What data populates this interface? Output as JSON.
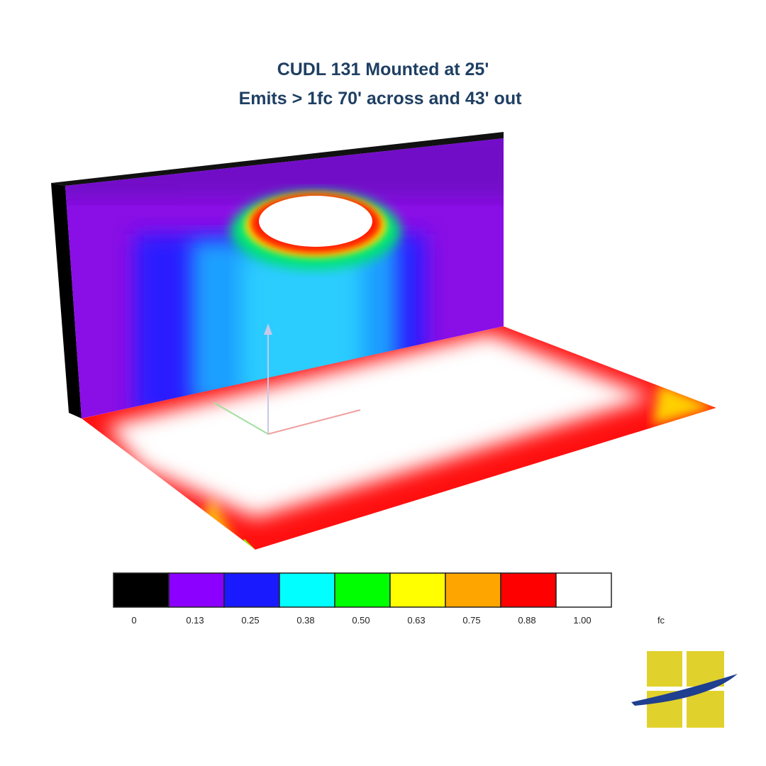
{
  "title": {
    "lines": [
      "CUDL 131 Mounted at 25'",
      "Emits > 1fc 70' across and 43' out"
    ]
  },
  "legend": {
    "items": [
      {
        "label": "0",
        "color": "#000000"
      },
      {
        "label": "0.13",
        "color": "#8b00ff"
      },
      {
        "label": "0.25",
        "color": "#1a1aff"
      },
      {
        "label": "0.38",
        "color": "#00ffff"
      },
      {
        "label": "0.50",
        "color": "#00ff00"
      },
      {
        "label": "0.63",
        "color": "#ffff00"
      },
      {
        "label": "0.75",
        "color": "#ffa500"
      },
      {
        "label": "0.88",
        "color": "#ff0000"
      },
      {
        "label": "1.00",
        "color": "#ffffff"
      }
    ],
    "unit": "fc"
  }
}
